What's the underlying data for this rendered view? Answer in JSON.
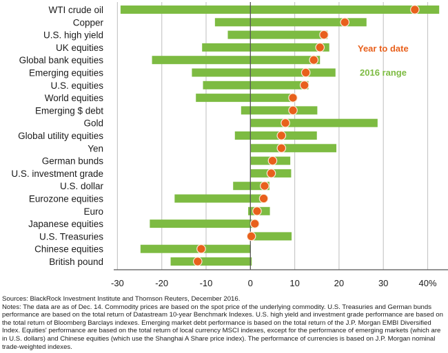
{
  "chart_data": {
    "type": "bar",
    "subtype": "floating-range-with-marker",
    "title": "",
    "xlabel": "",
    "ylabel": "",
    "xlim": [
      -30,
      42
    ],
    "x_ticks": [
      -30,
      -20,
      -10,
      0,
      10,
      20,
      30,
      40
    ],
    "x_tick_labels": [
      "-30",
      "-20",
      "-10",
      "0",
      "10",
      "20",
      "30",
      "40%"
    ],
    "grid": "vertical",
    "legend": [
      {
        "name": "Year to date",
        "marker": "dot",
        "color": "#e8601c",
        "placement": "right"
      },
      {
        "name": "2016 range",
        "marker": "bar",
        "color": "#7dbb42",
        "placement": "right"
      }
    ],
    "categories": [
      "WTI crude oil",
      "Copper",
      "U.S. high yield",
      "UK equities",
      "Global bank equities",
      "Emerging equities",
      "U.S. equities",
      "World equities",
      "Emerging $ debt",
      "Gold",
      "Global utility equities",
      "Yen",
      "German bunds",
      "U.S. investment grade",
      "U.S. dollar",
      "Eurozone equities",
      "Euro",
      "Japanese equities",
      "U.S. Treasuries",
      "Chinese equities",
      "British pound"
    ],
    "series": [
      {
        "name": "2016 range low",
        "values": [
          -29.3,
          -8.0,
          -5.1,
          -10.9,
          -22.2,
          -13.2,
          -10.7,
          -12.3,
          -2.1,
          0.1,
          -3.5,
          0.1,
          0.1,
          0.1,
          -3.9,
          -17.1,
          -0.5,
          -22.7,
          0.1,
          -24.8,
          -18.0
        ]
      },
      {
        "name": "2016 range high",
        "values": [
          42.6,
          26.2,
          17.4,
          17.8,
          15.7,
          19.2,
          13.1,
          9.3,
          15.1,
          28.7,
          15.0,
          19.4,
          9.0,
          9.2,
          4.3,
          2.6,
          4.4,
          0.5,
          9.3,
          0.0,
          0.3
        ]
      },
      {
        "name": "Year to date",
        "values": [
          37.1,
          21.3,
          16.6,
          15.7,
          14.3,
          12.5,
          12.2,
          9.6,
          9.6,
          7.9,
          7.0,
          7.0,
          5.0,
          4.7,
          3.2,
          3.0,
          1.5,
          1.0,
          0.2,
          -11.1,
          -11.9
        ]
      }
    ],
    "colors": {
      "range": "#7dbb42",
      "ytd": "#e8601c",
      "grid": "#c8c8c8",
      "axis": "#555555"
    }
  },
  "notes": {
    "sources": "Sources: BlackRock Investment Institute and Thomson Reuters, December 2016.",
    "text": "Notes: The data are as of Dec. 14. Commodity prices are based on the spot price of the underlying commodity. U.S. Treasuries and German bunds performance are based on the total return of Datastream 10-year Benchmark Indexes. U.S. high yield  and investment grade performance are based on the total return of Bloomberg Barclays indexes. Emerging market debt performance is based on the total return of the J.P. Morgan EMBI Diversified Index. Equities' performance are based on the total return of local currency MSCI indexes, except for the performance of emerging markets (which are in U.S. dollars) and Chinese equities (which use the Shanghai A Share price index). The performance of currencies is based on J.P. Morgan nominal trade-weighted indexes."
  }
}
